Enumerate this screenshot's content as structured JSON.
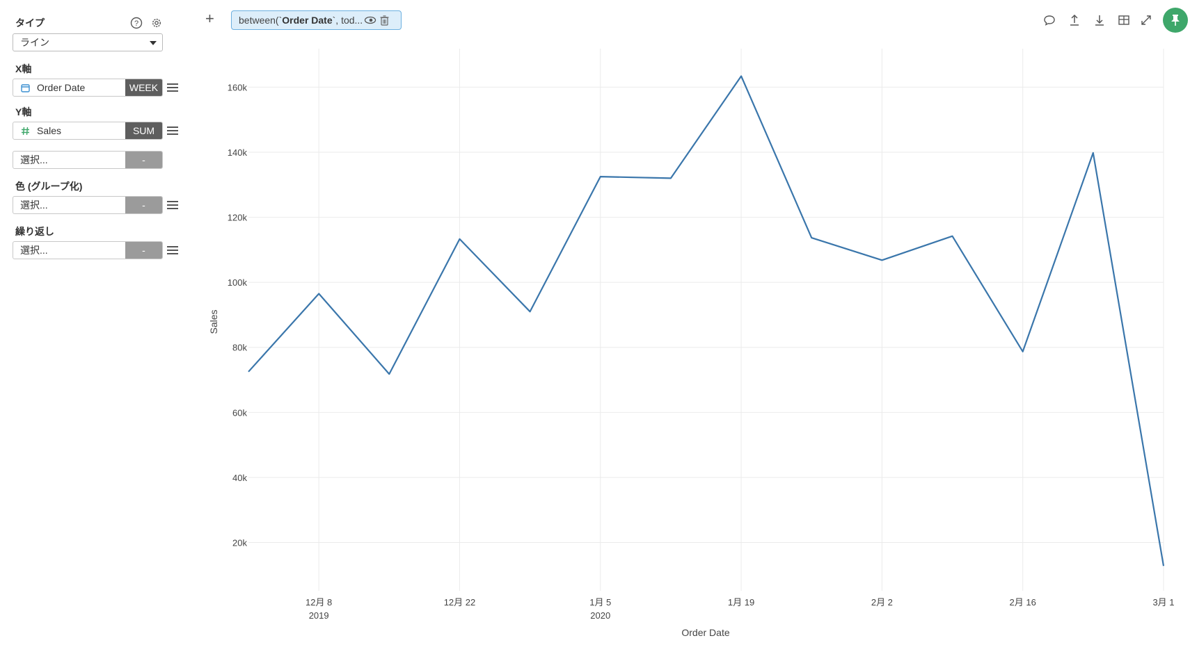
{
  "sidebar": {
    "type_label": "タイプ",
    "type_value": "ライン",
    "x_axis": {
      "label": "X軸",
      "field": "Order Date",
      "field_icon": "calendar-icon",
      "aggregation": "WEEK"
    },
    "y_axis": {
      "label": "Y軸",
      "field": "Sales",
      "field_icon": "hash-icon",
      "aggregation": "SUM",
      "extra_placeholder": "選択...",
      "extra_aggregation": "-"
    },
    "color": {
      "label": "色 (グループ化)",
      "placeholder": "選択...",
      "aggregation": "-"
    },
    "repeat": {
      "label": "繰り返し",
      "placeholder": "選択...",
      "aggregation": "-"
    }
  },
  "toolbar": {
    "add": "+",
    "filter_prefix": "between(`",
    "filter_bold": "Order Date",
    "filter_suffix": "`, tod...",
    "icons": [
      "comment-icon",
      "upload-icon",
      "download-icon",
      "table-icon",
      "expand-icon",
      "pin-icon"
    ],
    "pin_color": "#3ea76a"
  },
  "chart_data": {
    "type": "line",
    "xlabel": "Order Date",
    "ylabel": "Sales",
    "line_color": "#3a76ab",
    "ylim": [
      12000,
      172000
    ],
    "yticks": [
      20000,
      40000,
      60000,
      80000,
      100000,
      120000,
      140000,
      160000
    ],
    "ytick_labels": [
      "20k",
      "40k",
      "60k",
      "80k",
      "100k",
      "120k",
      "140k",
      "160k"
    ],
    "x": [
      "2019-12-01",
      "2019-12-08",
      "2019-12-15",
      "2019-12-22",
      "2019-12-29",
      "2020-01-05",
      "2020-01-12",
      "2020-01-19",
      "2020-01-26",
      "2020-02-02",
      "2020-02-09",
      "2020-02-16",
      "2020-02-23",
      "2020-03-01"
    ],
    "values": [
      72500,
      96500,
      71800,
      113300,
      91000,
      132500,
      132000,
      163400,
      113700,
      106800,
      114200,
      78700,
      139800,
      12800
    ],
    "xticks": [
      {
        "date": "2019-12-08",
        "label": "12月 8",
        "sublabel": "2019"
      },
      {
        "date": "2019-12-22",
        "label": "12月 22",
        "sublabel": ""
      },
      {
        "date": "2020-01-05",
        "label": "1月 5",
        "sublabel": "2020"
      },
      {
        "date": "2020-01-19",
        "label": "1月 19",
        "sublabel": ""
      },
      {
        "date": "2020-02-02",
        "label": "2月 2",
        "sublabel": ""
      },
      {
        "date": "2020-02-16",
        "label": "2月 16",
        "sublabel": ""
      },
      {
        "date": "2020-03-01",
        "label": "3月 1",
        "sublabel": ""
      }
    ],
    "grid": true,
    "legend": "none"
  }
}
